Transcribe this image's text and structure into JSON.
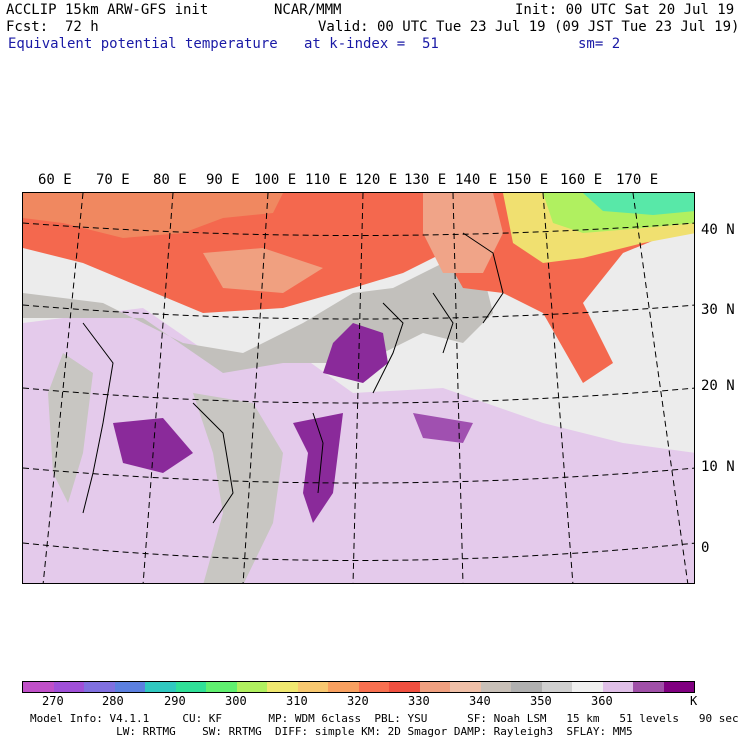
{
  "header": {
    "model": "ACCLIP 15km ARW-GFS init",
    "org": "NCAR/MMM",
    "init": "Init: 00 UTC Sat 20 Jul 19",
    "fcst_label": "Fcst:",
    "fcst_value": "72 h",
    "valid": "Valid: 00 UTC Tue 23 Jul 19 (09 JST Tue 23 Jul 19)",
    "field": "Equivalent potential temperature",
    "level": "at k-index =  51",
    "smooth": "sm= 2"
  },
  "map": {
    "lon_labels": [
      "60 E",
      "70 E",
      "80 E",
      "90 E",
      "100 E",
      "110 E",
      "120 E",
      "130 E",
      "140 E",
      "150 E",
      "160 E",
      "170 E"
    ],
    "lat_labels": [
      "40 N",
      "30 N",
      "20 N",
      "10 N",
      "0"
    ]
  },
  "colorbar": {
    "colors": [
      "#c050c8",
      "#a050d8",
      "#8070e0",
      "#5c80e0",
      "#30c8c0",
      "#30e098",
      "#60f070",
      "#b0f060",
      "#f0e870",
      "#f8c870",
      "#f8a060",
      "#f87050",
      "#f05040",
      "#f0a080",
      "#f0c0a8",
      "#c8c0b8",
      "#b0b0b0",
      "#d0d0d0",
      "#f0f0f0",
      "#e0c0e8",
      "#a050a8",
      "#800080"
    ],
    "ticks": [
      "270",
      "280",
      "290",
      "300",
      "310",
      "320",
      "330",
      "340",
      "350",
      "360"
    ],
    "unit": "K"
  },
  "footer": {
    "line1": "Model Info: V4.1.1     CU: KF       MP: WDM 6class  PBL: YSU      SF: Noah LSM   15 km   51 levels   90 sec",
    "line2": "             LW: RRTMG    SW: RRTMG  DIFF: simple KM: 2D Smagor DAMP: Rayleigh3  SFLAY: MM5"
  }
}
